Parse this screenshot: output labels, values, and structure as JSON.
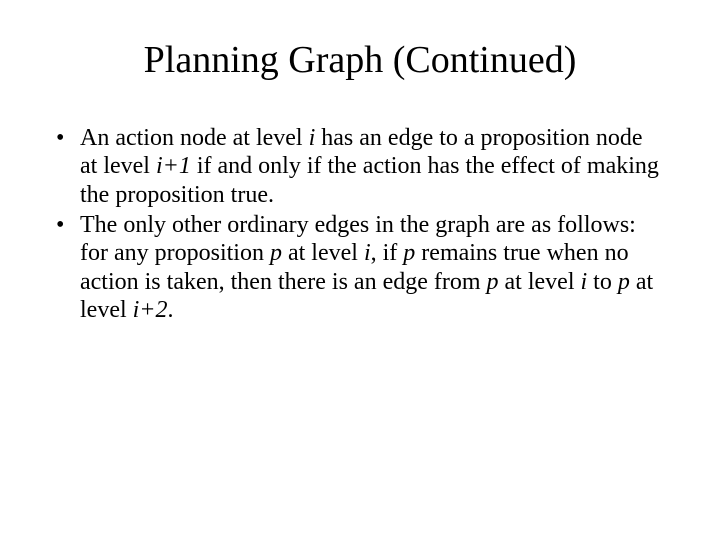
{
  "title": "Planning Graph (Continued)",
  "bullets": [
    {
      "segments": [
        {
          "t": "An action node at level "
        },
        {
          "t": "i",
          "italic": true
        },
        {
          "t": " has an edge to a proposition node at level "
        },
        {
          "t": "i+1",
          "italic": true
        },
        {
          "t": " if and only if the action has the effect of making the proposition true."
        }
      ]
    },
    {
      "segments": [
        {
          "t": "The only other ordinary edges in the graph are as follows: for any proposition "
        },
        {
          "t": "p",
          "italic": true
        },
        {
          "t": " at level "
        },
        {
          "t": "i",
          "italic": true
        },
        {
          "t": ", if "
        },
        {
          "t": "p",
          "italic": true
        },
        {
          "t": " remains true when no action is taken, then there is an edge from "
        },
        {
          "t": "p",
          "italic": true
        },
        {
          "t": " at level "
        },
        {
          "t": "i",
          "italic": true
        },
        {
          "t": " to "
        },
        {
          "t": "p",
          "italic": true
        },
        {
          "t": " at level "
        },
        {
          "t": "i+2",
          "italic": true
        },
        {
          "t": "."
        }
      ]
    }
  ]
}
